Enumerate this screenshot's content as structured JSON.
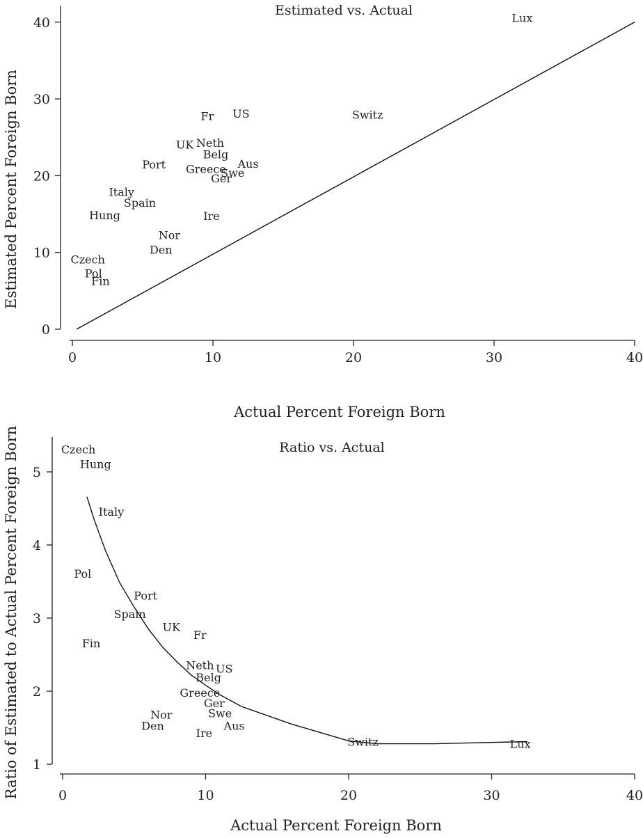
{
  "chart_data": [
    {
      "type": "scatter",
      "title": "Estimated vs. Actual",
      "xlabel": "Actual Percent Foreign Born",
      "ylabel": "Estimated Percent Foreign Born",
      "xlim": [
        0,
        40
      ],
      "ylim": [
        0,
        41
      ],
      "xticks": [
        0,
        10,
        20,
        30,
        40
      ],
      "yticks": [
        0,
        10,
        20,
        30,
        40
      ],
      "marker": "country label text",
      "points": [
        {
          "label": "Lux",
          "x": 32.0,
          "y": 40.5
        },
        {
          "label": "US",
          "x": 12.0,
          "y": 28.0
        },
        {
          "label": "Fr",
          "x": 9.6,
          "y": 27.7
        },
        {
          "label": "Switz",
          "x": 21.0,
          "y": 27.9
        },
        {
          "label": "UK",
          "x": 8.0,
          "y": 24.0
        },
        {
          "label": "Neth",
          "x": 9.8,
          "y": 24.2
        },
        {
          "label": "Belg",
          "x": 10.2,
          "y": 22.7
        },
        {
          "label": "Port",
          "x": 5.8,
          "y": 21.4
        },
        {
          "label": "Aus",
          "x": 12.5,
          "y": 21.5
        },
        {
          "label": "Greece",
          "x": 9.5,
          "y": 20.8
        },
        {
          "label": "Swe",
          "x": 11.4,
          "y": 20.3
        },
        {
          "label": "Ger",
          "x": 10.6,
          "y": 19.6
        },
        {
          "label": "Italy",
          "x": 3.5,
          "y": 17.8
        },
        {
          "label": "Spain",
          "x": 4.8,
          "y": 16.4
        },
        {
          "label": "Hung",
          "x": 2.3,
          "y": 14.8
        },
        {
          "label": "Ire",
          "x": 9.9,
          "y": 14.7
        },
        {
          "label": "Nor",
          "x": 6.9,
          "y": 12.2
        },
        {
          "label": "Den",
          "x": 6.3,
          "y": 10.3
        },
        {
          "label": "Czech",
          "x": 1.1,
          "y": 9.0
        },
        {
          "label": "Pol",
          "x": 1.5,
          "y": 7.2
        },
        {
          "label": "Fin",
          "x": 2.0,
          "y": 6.2
        }
      ],
      "line": {
        "x": [
          0.3,
          40
        ],
        "y": [
          0,
          40
        ]
      }
    },
    {
      "type": "scatter",
      "title": "Ratio vs. Actual",
      "xlabel": "Actual Percent Foreign Born",
      "ylabel": "Ratio of Estimated to Actual Percent Foreign Born",
      "xlim": [
        0,
        40
      ],
      "ylim": [
        1,
        5.4
      ],
      "xticks": [
        0,
        10,
        20,
        30,
        40
      ],
      "yticks": [
        1,
        2,
        3,
        4,
        5
      ],
      "marker": "country label text",
      "points": [
        {
          "label": "Czech",
          "x": 1.1,
          "y": 5.3
        },
        {
          "label": "Hung",
          "x": 2.3,
          "y": 5.1
        },
        {
          "label": "Italy",
          "x": 3.4,
          "y": 4.45
        },
        {
          "label": "Pol",
          "x": 1.4,
          "y": 3.6
        },
        {
          "label": "Port",
          "x": 5.8,
          "y": 3.3
        },
        {
          "label": "Spain",
          "x": 4.7,
          "y": 3.05
        },
        {
          "label": "UK",
          "x": 7.6,
          "y": 2.87
        },
        {
          "label": "Fr",
          "x": 9.6,
          "y": 2.76
        },
        {
          "label": "Fin",
          "x": 2.0,
          "y": 2.65
        },
        {
          "label": "Neth",
          "x": 9.6,
          "y": 2.35
        },
        {
          "label": "US",
          "x": 11.3,
          "y": 2.3
        },
        {
          "label": "Belg",
          "x": 10.2,
          "y": 2.18
        },
        {
          "label": "Greece",
          "x": 9.6,
          "y": 1.97
        },
        {
          "label": "Ger",
          "x": 10.6,
          "y": 1.83
        },
        {
          "label": "Nor",
          "x": 6.9,
          "y": 1.67
        },
        {
          "label": "Swe",
          "x": 11.0,
          "y": 1.69
        },
        {
          "label": "Den",
          "x": 6.3,
          "y": 1.52
        },
        {
          "label": "Aus",
          "x": 12.0,
          "y": 1.52
        },
        {
          "label": "Ire",
          "x": 9.9,
          "y": 1.42
        },
        {
          "label": "Switz",
          "x": 21.0,
          "y": 1.3
        },
        {
          "label": "Lux",
          "x": 32.0,
          "y": 1.27
        }
      ],
      "line": {
        "x": [
          1.7,
          2.2,
          3.0,
          4.0,
          5.0,
          6.0,
          7.0,
          8.0,
          9.0,
          10.0,
          11.0,
          12.5,
          16.0,
          20.0,
          22.0,
          26.0,
          32.5
        ],
        "y": [
          4.66,
          4.35,
          3.92,
          3.48,
          3.15,
          2.85,
          2.6,
          2.4,
          2.22,
          2.08,
          1.95,
          1.79,
          1.55,
          1.32,
          1.28,
          1.28,
          1.31
        ]
      }
    }
  ]
}
